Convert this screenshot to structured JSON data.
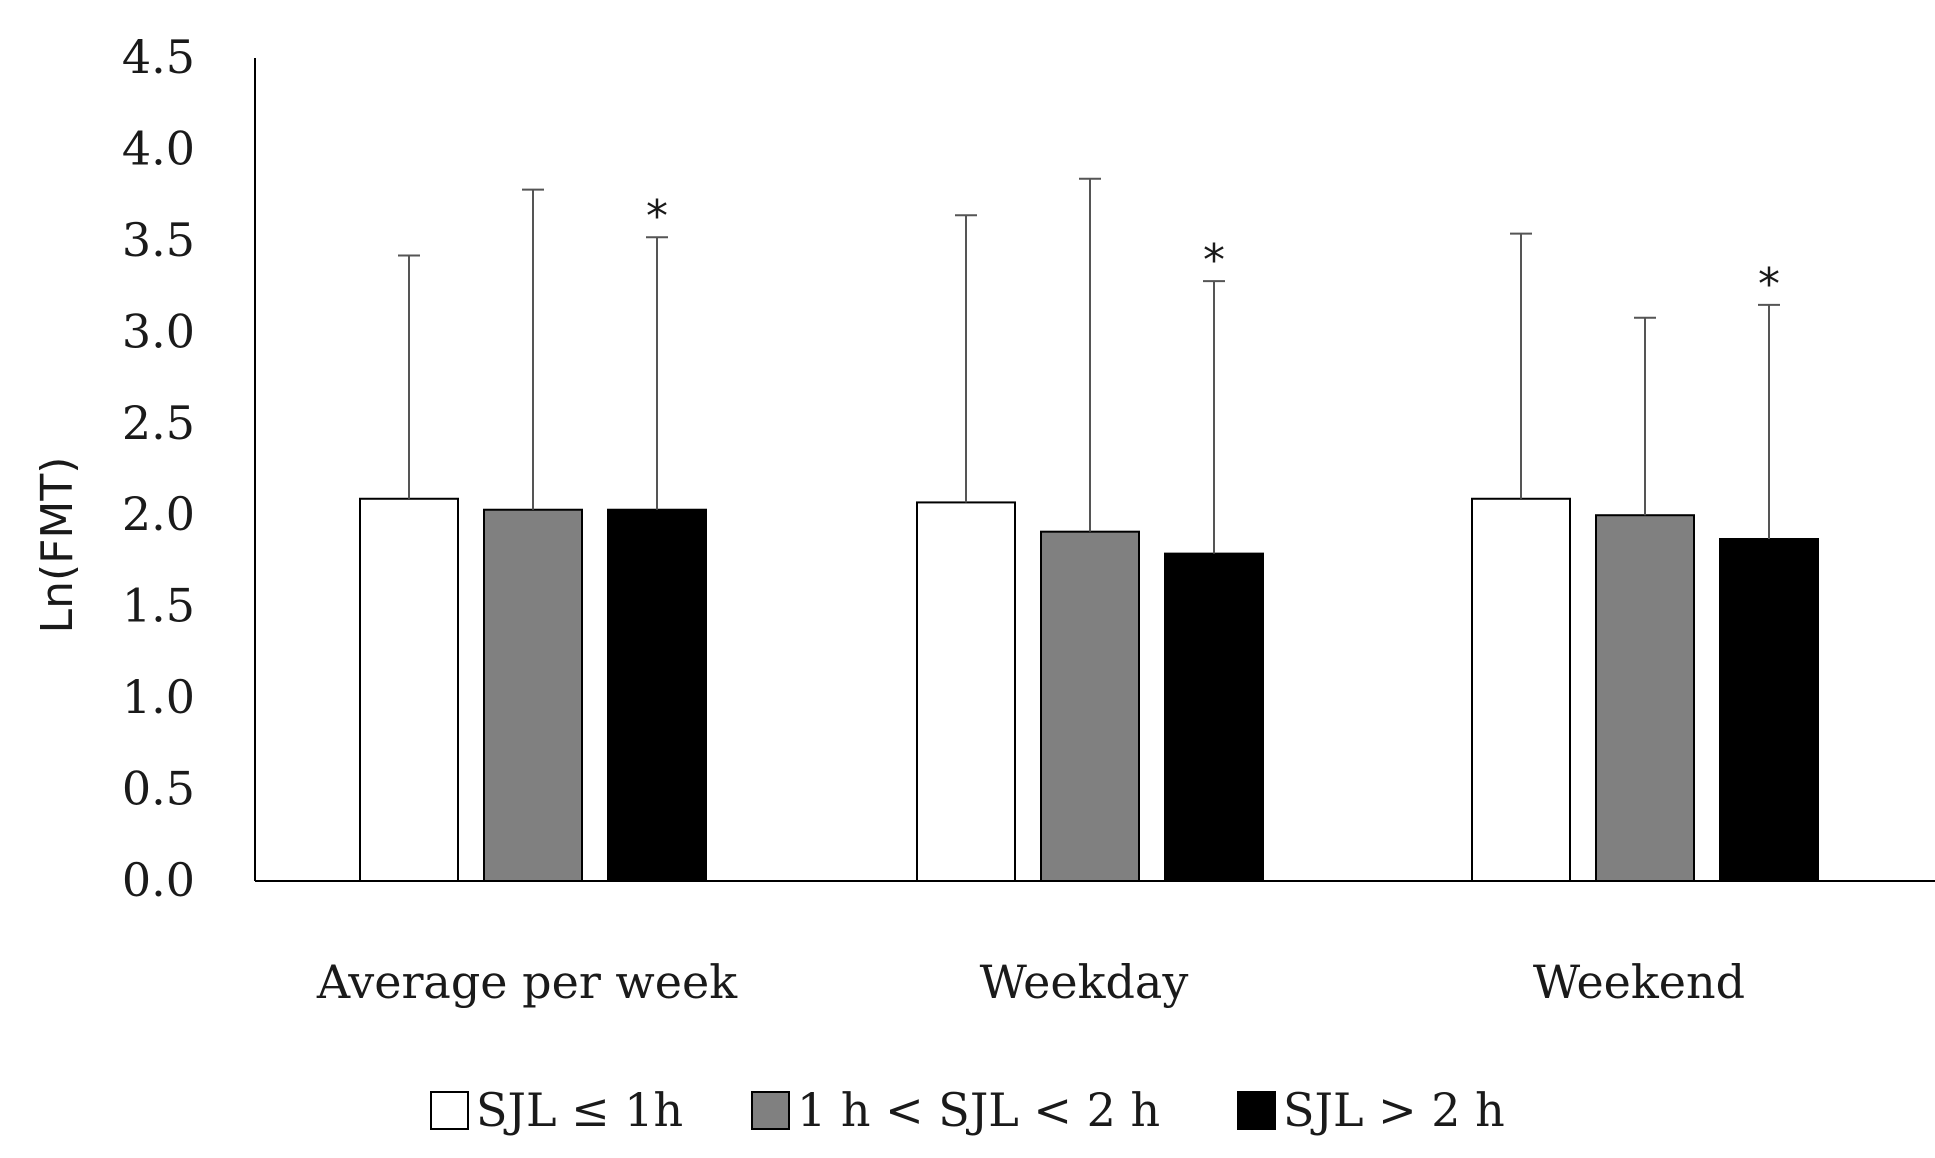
{
  "chart_data": {
    "type": "bar",
    "title": "",
    "xlabel": "",
    "ylabel": "Ln(FMT)",
    "ylim": [
      0,
      4.5
    ],
    "yticks": [
      "0.0",
      "0.5",
      "1.0",
      "1.5",
      "2.0",
      "2.5",
      "3.0",
      "3.5",
      "4.0",
      "4.5"
    ],
    "grid": false,
    "legend_position": "bottom",
    "categories": [
      "Average per week",
      "Weekday",
      "Weekend"
    ],
    "series": [
      {
        "name": "SJL ≤ 1h",
        "color": "#ffffff",
        "values": [
          2.09,
          2.07,
          2.09
        ],
        "error_upper": [
          3.42,
          3.64,
          3.54
        ],
        "significant": [
          false,
          false,
          false
        ]
      },
      {
        "name": "1 h < SJL < 2 h",
        "color": "#808080",
        "values": [
          2.03,
          1.91,
          2.0
        ],
        "error_upper": [
          3.78,
          3.84,
          3.08
        ],
        "significant": [
          false,
          false,
          false
        ]
      },
      {
        "name": "SJL > 2 h",
        "color": "#000000",
        "values": [
          2.03,
          1.79,
          1.87
        ],
        "error_upper": [
          3.52,
          3.28,
          3.15
        ],
        "significant": [
          true,
          true,
          true
        ]
      }
    ],
    "significance_marker": "*"
  }
}
